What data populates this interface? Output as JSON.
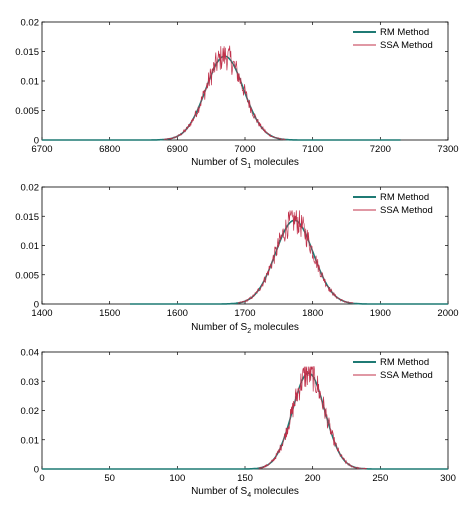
{
  "colors": {
    "rm": "#1f7a74",
    "ssa": "#c0304a",
    "axes": "#000000",
    "background": "#ffffff"
  },
  "chart_data": [
    {
      "type": "line",
      "xlabel": "Number of S",
      "xlabel_sub": "1",
      "xlabel_suffix": " molecules",
      "xlim": [
        6700,
        7300
      ],
      "ylim": [
        0,
        0.02
      ],
      "xticks": [
        6700,
        6800,
        6900,
        7000,
        7100,
        7200,
        7300
      ],
      "yticks": [
        "0",
        "0.005",
        "0.01",
        "0.015",
        "0.02"
      ],
      "legend_position": "top-right",
      "series": [
        {
          "name": "RM Method",
          "kind": "smooth",
          "mean": 6970,
          "sd": 28,
          "peak": 0.0142,
          "x_range": [
            6700,
            7230
          ]
        },
        {
          "name": "SSA Method",
          "kind": "noisy",
          "mean": 6970,
          "sd": 28,
          "peak": 0.0142,
          "x_range": [
            6880,
            7060
          ],
          "max": 0.0163
        }
      ]
    },
    {
      "type": "line",
      "xlabel": "Number of S",
      "xlabel_sub": "2",
      "xlabel_suffix": " molecules",
      "xlim": [
        1400,
        2000
      ],
      "ylim": [
        0,
        0.02
      ],
      "xticks": [
        1400,
        1500,
        1600,
        1700,
        1800,
        1900,
        2000
      ],
      "yticks": [
        "0",
        "0.005",
        "0.01",
        "0.015",
        "0.02"
      ],
      "legend_position": "top-right",
      "series": [
        {
          "name": "RM Method",
          "kind": "smooth",
          "mean": 1773,
          "sd": 28,
          "peak": 0.0143,
          "x_range": [
            1530,
            2000
          ]
        },
        {
          "name": "SSA Method",
          "kind": "noisy",
          "mean": 1773,
          "sd": 28,
          "peak": 0.0143,
          "x_range": [
            1690,
            1860
          ],
          "max": 0.016
        }
      ]
    },
    {
      "type": "line",
      "xlabel": "Number of S",
      "xlabel_sub": "4",
      "xlabel_suffix": " molecules",
      "xlim": [
        0,
        300
      ],
      "ylim": [
        0,
        0.04
      ],
      "xticks": [
        0,
        50,
        100,
        150,
        200,
        250,
        300
      ],
      "yticks": [
        "0",
        "0.01",
        "0.02",
        "0.03",
        "0.04"
      ],
      "legend_position": "top-right",
      "series": [
        {
          "name": "RM Method",
          "kind": "smooth",
          "mean": 197,
          "sd": 12,
          "peak": 0.0328,
          "x_range": [
            0,
            300
          ]
        },
        {
          "name": "SSA Method",
          "kind": "noisy",
          "mean": 197,
          "sd": 12,
          "peak": 0.0328,
          "x_range": [
            160,
            240
          ],
          "max": 0.035
        }
      ]
    }
  ]
}
